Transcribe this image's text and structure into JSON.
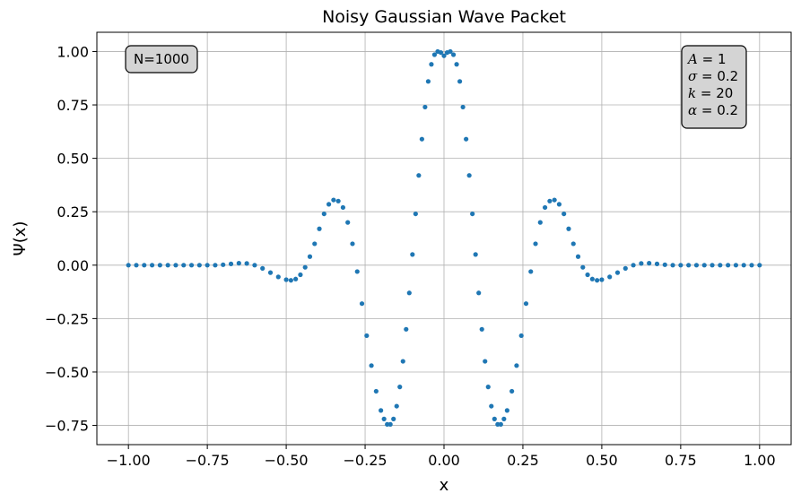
{
  "chart_data": {
    "type": "scatter",
    "title": "Noisy Gaussian Wave Packet",
    "xlabel": "x",
    "ylabel": "Ψ(x)",
    "xlim": [
      -1.1,
      1.1
    ],
    "ylim": [
      -0.84,
      1.09
    ],
    "xticks": [
      -1.0,
      -0.75,
      -0.5,
      -0.25,
      0.0,
      0.25,
      0.5,
      0.75,
      1.0
    ],
    "xtick_labels": [
      "−1.00",
      "−0.75",
      "−0.50",
      "−0.25",
      "0.00",
      "0.25",
      "0.50",
      "0.75",
      "1.00"
    ],
    "yticks": [
      -0.75,
      -0.5,
      -0.25,
      0.0,
      0.25,
      0.5,
      0.75,
      1.0
    ],
    "ytick_labels": [
      "−0.75",
      "−0.50",
      "−0.25",
      "0.00",
      "0.25",
      "0.50",
      "0.75",
      "1.00"
    ],
    "grid": true,
    "marker_color": "#1f77b4",
    "series": [
      {
        "x": [
          -1.0,
          -0.975,
          -0.95,
          -0.925,
          -0.9,
          -0.875,
          -0.85,
          -0.825,
          -0.8,
          -0.775,
          -0.75,
          -0.725,
          -0.7,
          -0.675,
          -0.65,
          -0.625,
          -0.6,
          -0.575,
          -0.55,
          -0.525,
          -0.5,
          -0.485,
          -0.47,
          -0.455,
          -0.44,
          -0.425,
          -0.41,
          -0.395,
          -0.38,
          -0.365,
          -0.35,
          -0.335,
          -0.32,
          -0.305,
          -0.29,
          -0.275,
          -0.26,
          -0.245,
          -0.23,
          -0.215,
          -0.2,
          -0.19,
          -0.18,
          -0.17,
          -0.16,
          -0.15,
          -0.14,
          -0.13,
          -0.12,
          -0.11,
          -0.1,
          -0.09,
          -0.08,
          -0.07,
          -0.06,
          -0.05,
          -0.04,
          -0.03,
          -0.02,
          -0.01,
          0.0,
          0.01,
          0.02,
          0.03,
          0.04,
          0.05,
          0.06,
          0.07,
          0.08,
          0.09,
          0.1,
          0.11,
          0.12,
          0.13,
          0.14,
          0.15,
          0.16,
          0.17,
          0.18,
          0.19,
          0.2,
          0.215,
          0.23,
          0.245,
          0.26,
          0.275,
          0.29,
          0.305,
          0.32,
          0.335,
          0.35,
          0.365,
          0.38,
          0.395,
          0.41,
          0.425,
          0.44,
          0.455,
          0.47,
          0.485,
          0.5,
          0.525,
          0.55,
          0.575,
          0.6,
          0.625,
          0.65,
          0.675,
          0.7,
          0.725,
          0.75,
          0.775,
          0.8,
          0.825,
          0.85,
          0.875,
          0.9,
          0.925,
          0.95,
          0.975,
          1.0
        ],
        "values": [
          0.0,
          0.0,
          0.0,
          0.0,
          0.0,
          0.0,
          0.0,
          0.0,
          0.0,
          0.0,
          0.0,
          0.0,
          0.002,
          0.006,
          0.009,
          0.008,
          0.0,
          -0.015,
          -0.035,
          -0.055,
          -0.068,
          -0.071,
          -0.065,
          -0.045,
          -0.01,
          0.04,
          0.1,
          0.17,
          0.24,
          0.285,
          0.305,
          0.3,
          0.27,
          0.2,
          0.1,
          -0.03,
          -0.18,
          -0.33,
          -0.47,
          -0.59,
          -0.68,
          -0.72,
          -0.745,
          -0.745,
          -0.72,
          -0.66,
          -0.57,
          -0.45,
          -0.3,
          -0.13,
          0.05,
          0.24,
          0.42,
          0.59,
          0.74,
          0.86,
          0.94,
          0.985,
          1.0,
          0.995,
          0.98,
          0.995,
          1.0,
          0.985,
          0.94,
          0.86,
          0.74,
          0.59,
          0.42,
          0.24,
          0.05,
          -0.13,
          -0.3,
          -0.45,
          -0.57,
          -0.66,
          -0.72,
          -0.745,
          -0.745,
          -0.72,
          -0.68,
          -0.59,
          -0.47,
          -0.33,
          -0.18,
          -0.03,
          0.1,
          0.2,
          0.27,
          0.3,
          0.305,
          0.285,
          0.24,
          0.17,
          0.1,
          0.04,
          -0.01,
          -0.045,
          -0.065,
          -0.071,
          -0.068,
          -0.055,
          -0.035,
          -0.015,
          0.0,
          0.008,
          0.009,
          0.006,
          0.002,
          0.0,
          0.0,
          0.0,
          0.0,
          0.0,
          0.0,
          0.0,
          0.0,
          0.0,
          0.0,
          0.0,
          0.0
        ]
      }
    ],
    "annotations": {
      "n_label": "N=1000",
      "params": [
        {
          "symbol": "A",
          "value": "= 1"
        },
        {
          "symbol": "σ",
          "value": "= 0.2"
        },
        {
          "symbol": "k",
          "value": "= 20"
        },
        {
          "symbol": "α",
          "value": "= 0.2"
        }
      ]
    }
  }
}
